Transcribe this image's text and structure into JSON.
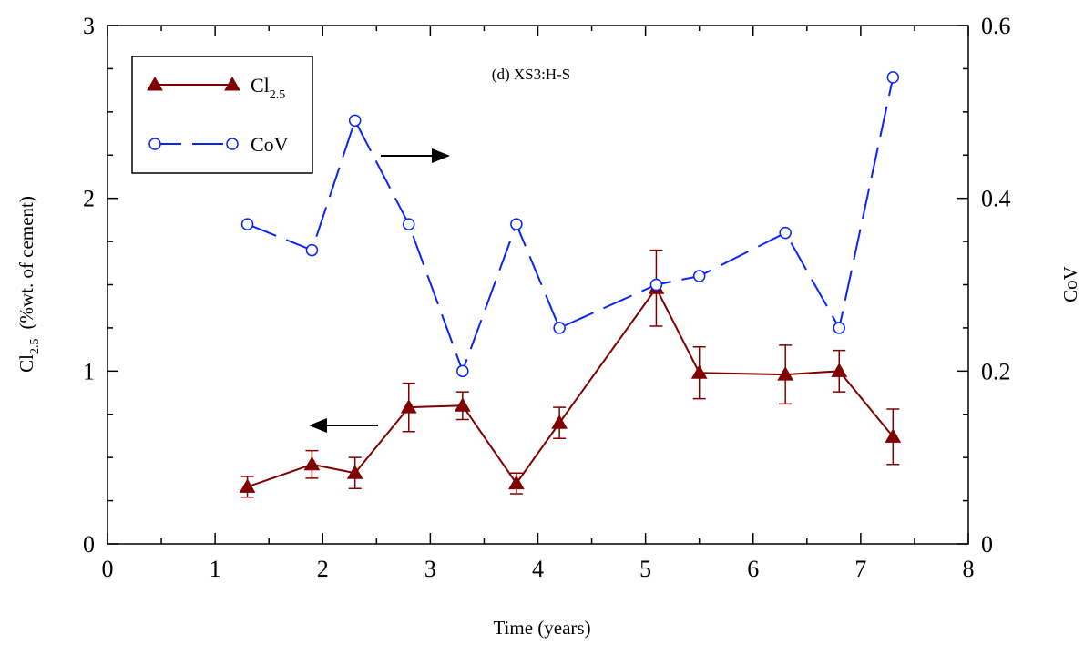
{
  "chart_data": {
    "type": "line",
    "annotation": "(d) XS3:H-S",
    "xlabel": "Time  (years)",
    "ylabel": {
      "main": "Cl",
      "sub": "2.5",
      "suffix": "(%wt. of cement)"
    },
    "y2label": "CoV",
    "x": [
      1.3,
      1.9,
      2.3,
      2.8,
      3.3,
      3.8,
      4.2,
      5.1,
      5.5,
      6.3,
      6.8,
      7.3
    ],
    "series": [
      {
        "name": "Cl",
        "name_sub": "2.5",
        "color": "#800000",
        "marker": "triangle",
        "axis": "y",
        "values": [
          0.33,
          0.46,
          0.41,
          0.79,
          0.8,
          0.35,
          0.7,
          1.48,
          0.99,
          0.98,
          1.0,
          0.62
        ],
        "errors": [
          0.06,
          0.08,
          0.09,
          0.14,
          0.08,
          0.06,
          0.09,
          0.22,
          0.15,
          0.17,
          0.12,
          0.16
        ]
      },
      {
        "name": "CoV",
        "color": "#0a24f5",
        "marker": "circle",
        "dashed": true,
        "axis": "y2",
        "values": [
          0.37,
          0.34,
          0.49,
          0.37,
          0.2,
          0.37,
          0.25,
          0.3,
          0.31,
          0.36,
          0.25,
          0.54
        ]
      }
    ],
    "xlim": [
      0,
      8
    ],
    "xticks": [
      0,
      1,
      2,
      3,
      4,
      5,
      6,
      7,
      8
    ],
    "ylim": [
      0,
      3
    ],
    "yticks": [
      0,
      1,
      2,
      3
    ],
    "y2lim": [
      0,
      0.6
    ],
    "y2ticks": [
      0,
      0.2,
      0.4,
      0.6
    ],
    "grid": false,
    "legend": "upper left"
  }
}
